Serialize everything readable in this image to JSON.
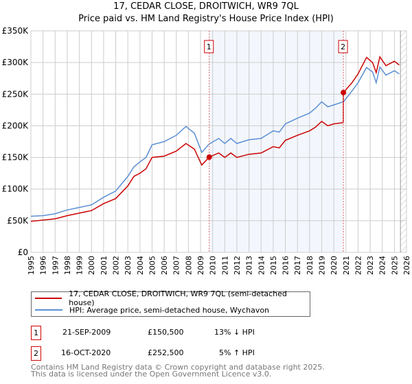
{
  "chart_data": {
    "type": "line",
    "title": "17, CEDAR CLOSE, DROITWICH, WR9 7QL",
    "subtitle": "Price paid vs. HM Land Registry's House Price Index (HPI)",
    "xlim": [
      1995,
      2026
    ],
    "ylim": [
      0,
      350000
    ],
    "y_ticks": [
      "£0",
      "£50K",
      "£100K",
      "£150K",
      "£200K",
      "£250K",
      "£300K",
      "£350K"
    ],
    "x_ticks": [
      "1995",
      "1996",
      "1997",
      "1998",
      "1999",
      "2000",
      "2001",
      "2002",
      "2003",
      "2004",
      "2005",
      "2006",
      "2007",
      "2008",
      "2009",
      "2010",
      "2011",
      "2012",
      "2013",
      "2014",
      "2015",
      "2016",
      "2017",
      "2018",
      "2019",
      "2020",
      "2021",
      "2022",
      "2023",
      "2024",
      "2025",
      "2026"
    ],
    "grid": true,
    "series": [
      {
        "name": "17, CEDAR CLOSE, DROITWICH, WR9 7QL (semi-detached house)",
        "color": "#cc0000",
        "x": [
          1995,
          1996,
          1997,
          1998,
          1999,
          2000,
          2001,
          2002,
          2003,
          2003.5,
          2004,
          2004.5,
          2005,
          2006,
          2007,
          2007.8,
          2008.5,
          2009.1,
          2009.72,
          2010.5,
          2011,
          2011.5,
          2012,
          2013,
          2014,
          2015,
          2015.5,
          2016,
          2017,
          2018,
          2018.5,
          2019,
          2019.5,
          2020,
          2020.78,
          2020.79,
          2021.5,
          2022,
          2022.7,
          2023.2,
          2023.5,
          2023.8,
          2024.3,
          2025,
          2025.4
        ],
        "y": [
          49000,
          51000,
          53000,
          58000,
          62000,
          66000,
          77000,
          85000,
          105000,
          120000,
          125000,
          132000,
          150000,
          152000,
          160000,
          172000,
          163000,
          138000,
          150500,
          157000,
          150000,
          157000,
          150000,
          155000,
          157000,
          167000,
          165000,
          177000,
          185000,
          192000,
          198000,
          207000,
          200000,
          203000,
          205000,
          252500,
          268000,
          282000,
          308000,
          300000,
          284000,
          309000,
          295000,
          302000,
          296000
        ]
      },
      {
        "name": "HPI: Average price, semi-detached house, Wychavon",
        "color": "#5b8fd4",
        "x": [
          1995,
          1996,
          1997,
          1998,
          1999,
          2000,
          2001,
          2002,
          2003,
          2003.5,
          2004,
          2004.5,
          2005,
          2006,
          2007,
          2007.8,
          2008.5,
          2009.1,
          2009.7,
          2010.5,
          2011,
          2011.5,
          2012,
          2013,
          2014,
          2015,
          2015.5,
          2016,
          2017,
          2018,
          2018.5,
          2019,
          2019.5,
          2020,
          2020.8,
          2021.5,
          2022,
          2022.7,
          2023.2,
          2023.5,
          2023.8,
          2024.3,
          2025,
          2025.4
        ],
        "y": [
          57000,
          58000,
          61000,
          67000,
          71000,
          75000,
          87000,
          97000,
          120000,
          135000,
          143000,
          150000,
          170000,
          175000,
          185000,
          199000,
          188000,
          158000,
          171000,
          180000,
          172000,
          180000,
          172000,
          178000,
          180000,
          192000,
          190000,
          203000,
          212000,
          220000,
          228000,
          238000,
          230000,
          233000,
          238000,
          255000,
          268000,
          292000,
          285000,
          268000,
          293000,
          280000,
          287000,
          282000
        ]
      }
    ],
    "annotations": [
      {
        "label": "1",
        "x": 2009.72,
        "date": "21-SEP-2009",
        "price": "£150,500",
        "hpi": "13% ↓ HPI",
        "y": 150500
      },
      {
        "label": "2",
        "x": 2020.79,
        "date": "16-OCT-2020",
        "price": "£252,500",
        "hpi": "5% ↑ HPI",
        "y": 252500
      }
    ],
    "shaded_range": [
      2009.72,
      2020.79
    ],
    "forecast_hatch_from": 2025.5
  },
  "footer": [
    "Contains HM Land Registry data © Crown copyright and database right 2025.",
    "This data is licensed under the Open Government Licence v3.0."
  ]
}
